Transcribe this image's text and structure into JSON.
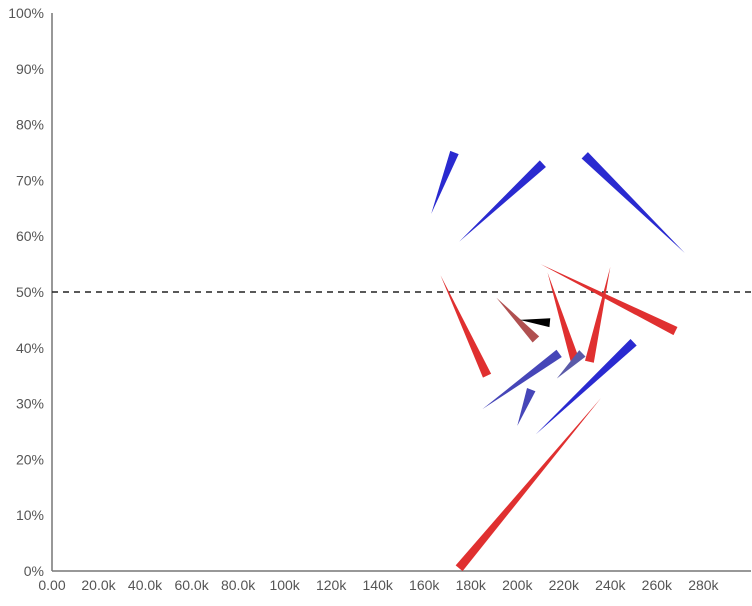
{
  "chart_data": {
    "type": "scatter",
    "mark": "wedge",
    "title": "",
    "xlabel": "",
    "ylabel": "",
    "xlim": [
      0,
      300000
    ],
    "ylim": [
      0,
      100
    ],
    "x_ticks": [
      0,
      20000,
      40000,
      60000,
      80000,
      100000,
      120000,
      140000,
      160000,
      180000,
      200000,
      220000,
      240000,
      260000,
      280000
    ],
    "x_tick_labels": [
      "0.00",
      "20.0k",
      "40.0k",
      "60.0k",
      "80.0k",
      "100k",
      "120k",
      "140k",
      "160k",
      "180k",
      "200k",
      "220k",
      "240k",
      "260k",
      "280k"
    ],
    "y_ticks": [
      0,
      10,
      20,
      30,
      40,
      50,
      60,
      70,
      80,
      90,
      100
    ],
    "y_tick_labels": [
      "0%",
      "10%",
      "20%",
      "30%",
      "40%",
      "50%",
      "60%",
      "70%",
      "80%",
      "90%",
      "100%"
    ],
    "reference_line": {
      "y": 50,
      "style": "dashed",
      "color": "#333333"
    },
    "grid": false,
    "legend": "none",
    "wedges": [
      {
        "color": "#2a2ad0",
        "x_thin": 163000,
        "y_thin": 64,
        "x_thick": 173000,
        "y_thick": 75
      },
      {
        "color": "#2a2ad0",
        "x_thin": 175000,
        "y_thin": 59,
        "x_thick": 211000,
        "y_thick": 73
      },
      {
        "color": "#2a2ad0",
        "x_thin": 272000,
        "y_thin": 57,
        "x_thick": 229000,
        "y_thick": 74.5
      },
      {
        "color": "#e03030",
        "x_thin": 167000,
        "y_thin": 53,
        "x_thick": 187000,
        "y_thick": 35
      },
      {
        "color": "#e03030",
        "x_thin": 210000,
        "y_thin": 55,
        "x_thick": 268000,
        "y_thick": 43
      },
      {
        "color": "#e03030",
        "x_thin": 213000,
        "y_thin": 53.5,
        "x_thick": 225000,
        "y_thick": 37.5
      },
      {
        "color": "#e03030",
        "x_thin": 240000,
        "y_thin": 54.5,
        "x_thick": 231000,
        "y_thick": 37.5
      },
      {
        "color": "#e03030",
        "x_thin": 236000,
        "y_thin": 31,
        "x_thick": 175000,
        "y_thick": 0.5
      },
      {
        "color": "#b05050",
        "x_thin": 191000,
        "y_thin": 49,
        "x_thick": 208000,
        "y_thick": 41.5
      },
      {
        "color": "#000000",
        "x_thin": 201000,
        "y_thin": 45,
        "x_thick": 214000,
        "y_thick": 44.5
      },
      {
        "color": "#4646b8",
        "x_thin": 185000,
        "y_thin": 29,
        "x_thick": 218000,
        "y_thick": 39
      },
      {
        "color": "#5a5aa8",
        "x_thin": 217000,
        "y_thin": 34.5,
        "x_thick": 228000,
        "y_thick": 39
      },
      {
        "color": "#4646b8",
        "x_thin": 200000,
        "y_thin": 26,
        "x_thick": 206000,
        "y_thick": 32.5
      },
      {
        "color": "#2a2ad0",
        "x_thin": 208000,
        "y_thin": 24.5,
        "x_thick": 250000,
        "y_thick": 41
      }
    ]
  }
}
